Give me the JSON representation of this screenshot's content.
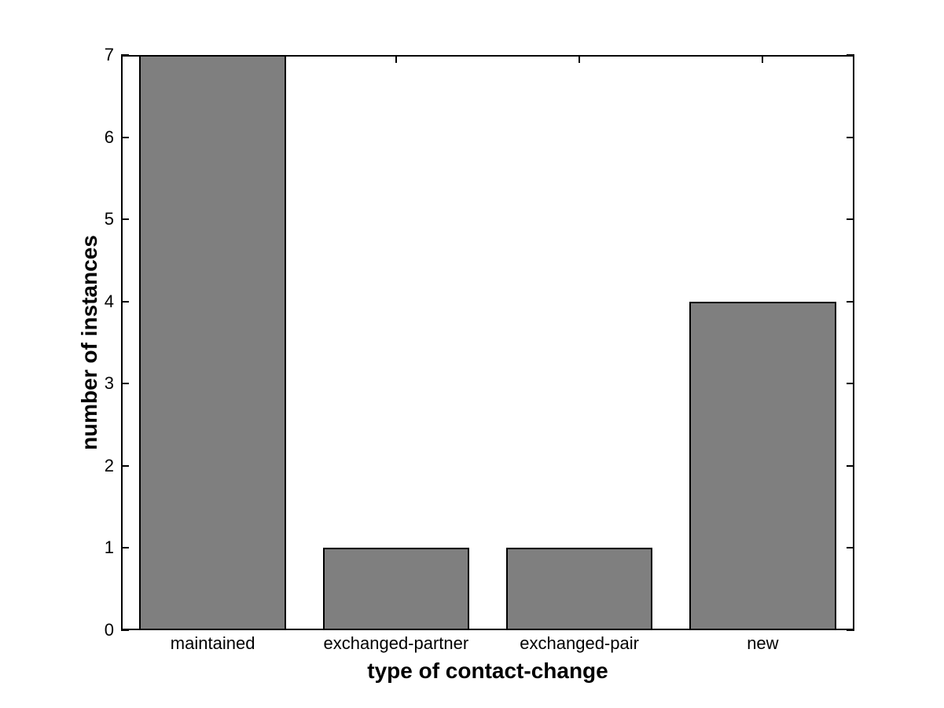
{
  "figure": {
    "background": "#ffffff"
  },
  "chart_data": {
    "type": "bar",
    "categories": [
      "maintained",
      "exchanged-partner",
      "exchanged-pair",
      "new"
    ],
    "values": [
      7,
      1,
      1,
      4
    ],
    "title": "",
    "xlabel": "type of contact-change",
    "ylabel": "number of instances",
    "ylim": [
      0,
      7
    ],
    "yticks": [
      "0",
      "1",
      "2",
      "3",
      "4",
      "5",
      "6",
      "7"
    ],
    "bar_width_fraction": 0.8,
    "bar_fill_color": "#7f7f7f",
    "bar_edge_color": "#000000",
    "axis_color": "#000000",
    "grid": false,
    "legend": "none",
    "tick_direction": "in"
  }
}
